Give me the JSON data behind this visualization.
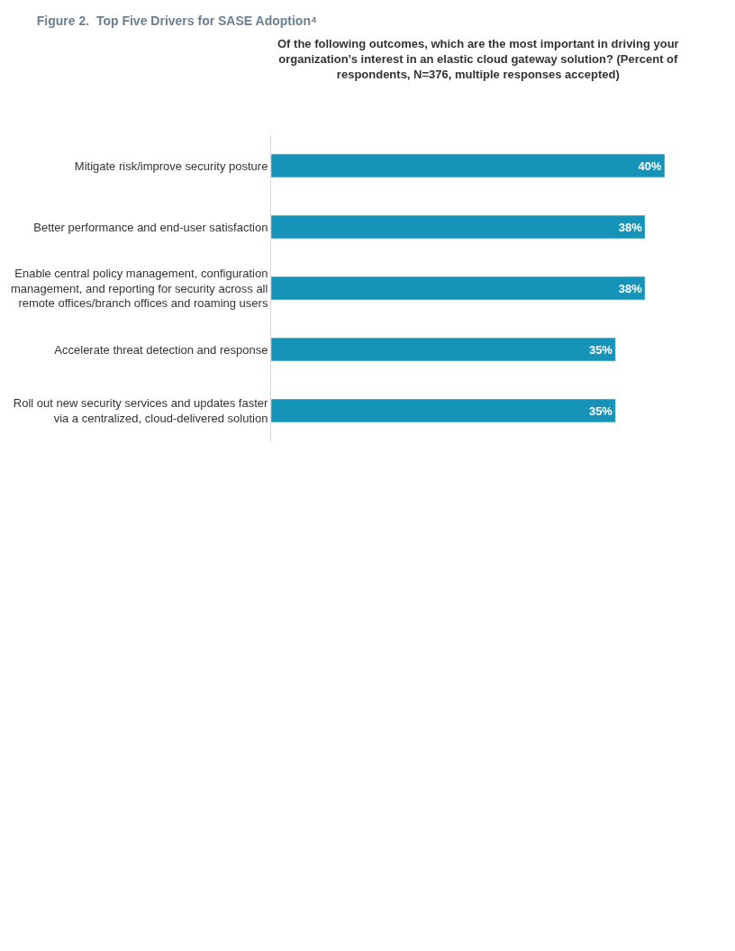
{
  "chart_data": {
    "type": "bar",
    "orientation": "horizontal",
    "title": "Figure 2.  Top Five Drivers for SASE Adoption⁴",
    "subtitle": "Of the following outcomes, which are the most important in driving your organization’s interest in an elastic cloud gateway solution? (Percent of respondents, N=376, multiple responses accepted)",
    "categories": [
      "Mitigate risk/improve security posture",
      "Better performance and end-user satisfaction",
      "Enable central policy management, configuration management, and reporting for security across all remote offices/branch offices and roaming users",
      "Accelerate threat detection and response",
      "Roll out new security services and updates faster via a centralized, cloud-delivered solution"
    ],
    "values": [
      40,
      38,
      38,
      35,
      35
    ],
    "value_labels": [
      "40%",
      "38%",
      "38%",
      "35%",
      "35%"
    ],
    "color": "#1693b8",
    "tick_labels": "y",
    "legend": false
  }
}
